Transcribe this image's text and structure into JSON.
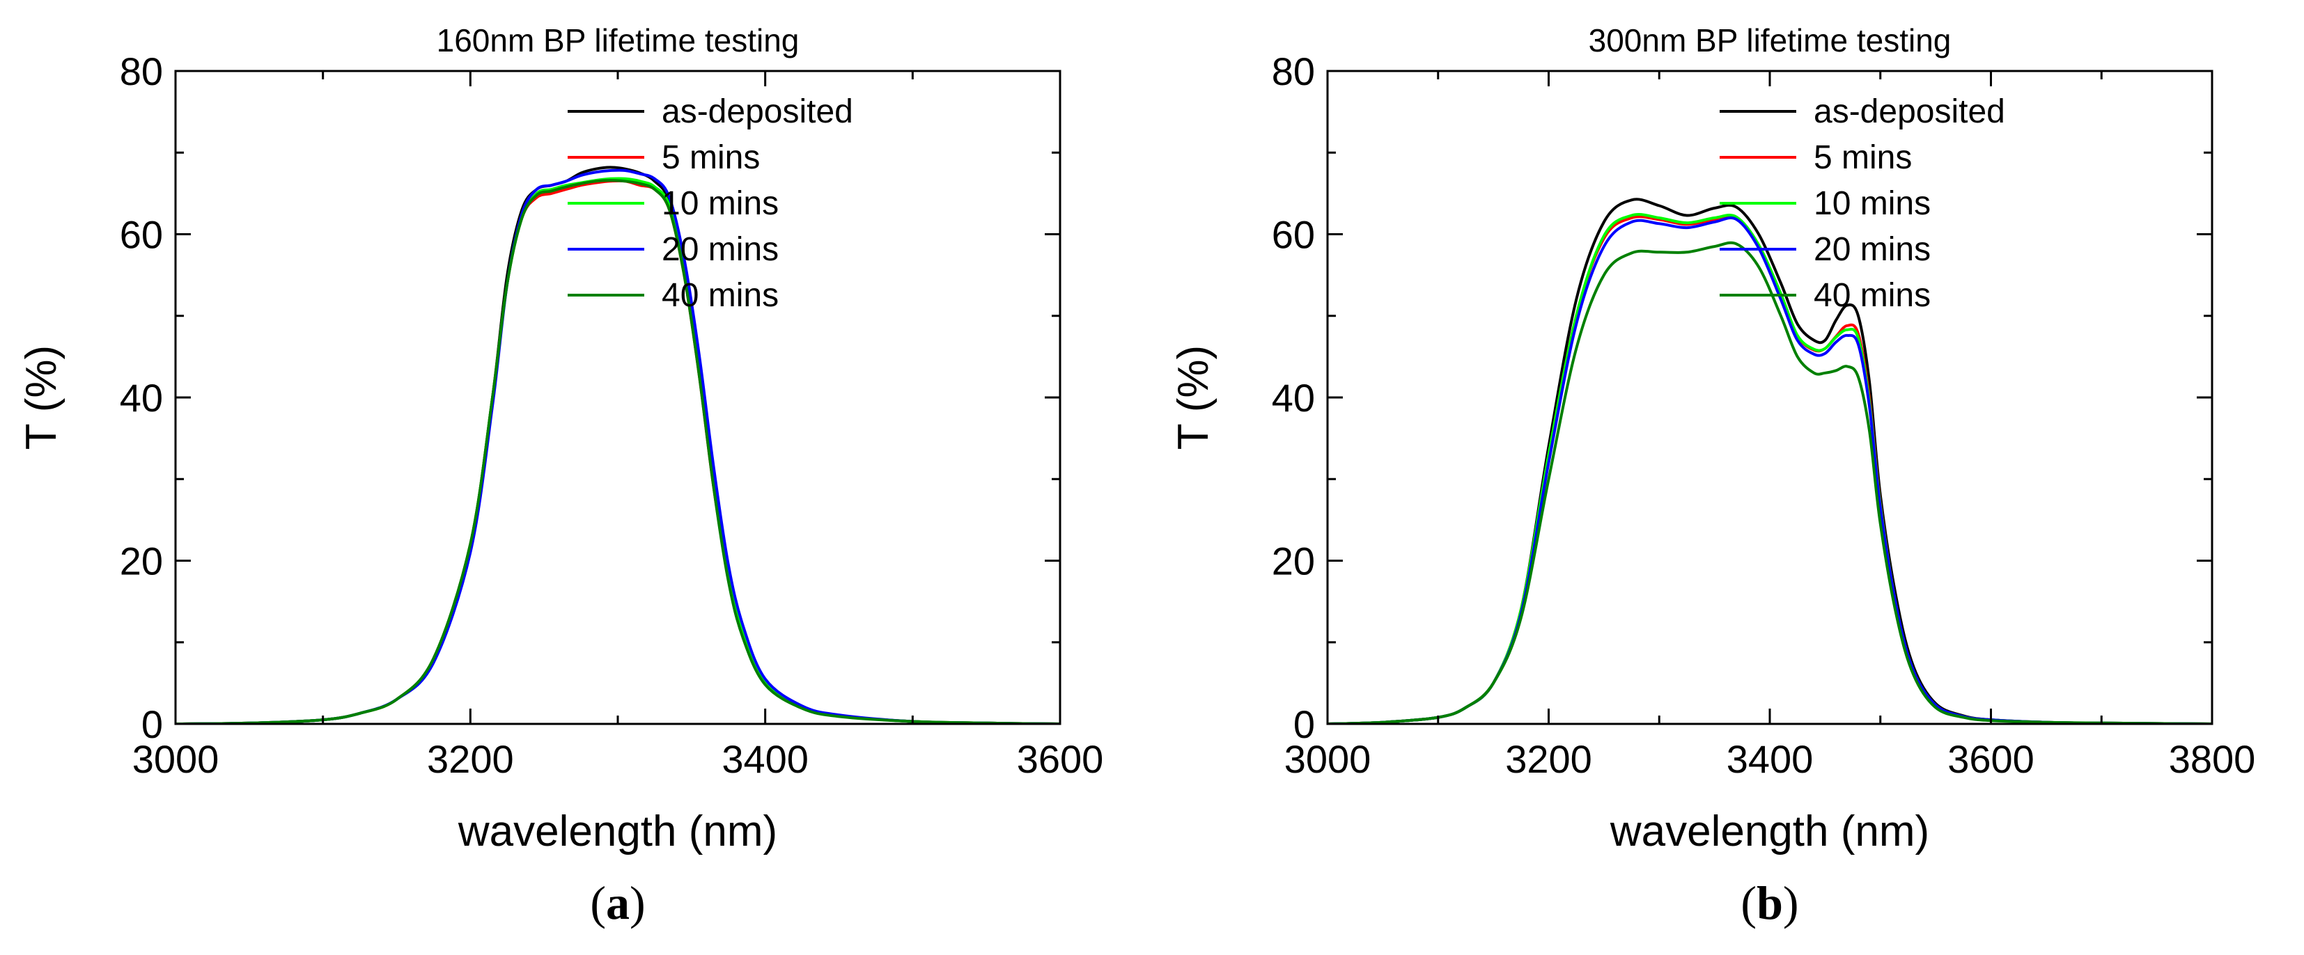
{
  "chart_data": [
    {
      "type": "line",
      "panel_label": "(a)",
      "panel_letter": "a",
      "title": "160nm BP lifetime testing",
      "xlabel": "wavelength (nm)",
      "ylabel": "T (%)",
      "xlim": [
        3000,
        3600
      ],
      "ylim": [
        0,
        80
      ],
      "xticks": [
        3000,
        3200,
        3400,
        3600
      ],
      "yticks": [
        0,
        20,
        40,
        60,
        80
      ],
      "x_minor_step": 100,
      "y_minor_step": 10,
      "grid": false,
      "legend_position": "top-right",
      "series": [
        {
          "name": "as-deposited",
          "color": "#000000",
          "x": [
            3000,
            3050,
            3100,
            3125,
            3150,
            3175,
            3200,
            3215,
            3225,
            3235,
            3245,
            3255,
            3265,
            3275,
            3285,
            3295,
            3305,
            3315,
            3325,
            3335,
            3345,
            3355,
            3365,
            3375,
            3385,
            3400,
            3425,
            3450,
            3500,
            3550,
            3600
          ],
          "y": [
            0,
            0.1,
            0.5,
            1.3,
            3,
            8,
            22,
            40,
            55,
            63,
            65.5,
            66,
            66.5,
            67.5,
            68,
            68.2,
            68,
            67.5,
            66.5,
            64,
            56,
            44,
            30,
            18,
            11,
            5,
            2,
            1,
            0.3,
            0.1,
            0
          ]
        },
        {
          "name": "5 mins",
          "color": "#ff0000",
          "x": [
            3000,
            3050,
            3100,
            3125,
            3150,
            3175,
            3200,
            3215,
            3225,
            3235,
            3245,
            3255,
            3265,
            3275,
            3285,
            3295,
            3305,
            3315,
            3325,
            3335,
            3345,
            3355,
            3365,
            3375,
            3385,
            3400,
            3425,
            3450,
            3500,
            3550,
            3600
          ],
          "y": [
            0,
            0.1,
            0.5,
            1.3,
            3,
            8,
            22,
            40,
            54,
            62,
            64.5,
            65,
            65.5,
            66,
            66.3,
            66.5,
            66.5,
            66,
            65.5,
            63,
            55,
            43,
            29,
            18,
            11,
            5,
            2,
            1,
            0.3,
            0.1,
            0
          ]
        },
        {
          "name": "10 mins",
          "color": "#00ff00",
          "x": [
            3000,
            3050,
            3100,
            3125,
            3150,
            3175,
            3200,
            3215,
            3225,
            3235,
            3245,
            3255,
            3265,
            3275,
            3285,
            3295,
            3305,
            3315,
            3325,
            3335,
            3345,
            3355,
            3365,
            3375,
            3385,
            3400,
            3425,
            3450,
            3500,
            3550,
            3600
          ],
          "y": [
            0,
            0.1,
            0.5,
            1.3,
            3,
            8,
            22,
            40,
            54,
            62,
            65,
            65.5,
            66,
            66.3,
            66.6,
            66.8,
            66.8,
            66.5,
            65.8,
            63.5,
            55.5,
            43.5,
            29.5,
            18,
            11,
            5,
            2,
            1,
            0.3,
            0.1,
            0
          ]
        },
        {
          "name": "20 mins",
          "color": "#0000ff",
          "x": [
            3000,
            3050,
            3100,
            3125,
            3150,
            3175,
            3200,
            3215,
            3225,
            3235,
            3245,
            3255,
            3265,
            3275,
            3285,
            3295,
            3305,
            3315,
            3325,
            3335,
            3345,
            3355,
            3365,
            3375,
            3385,
            3400,
            3425,
            3450,
            3500,
            3550,
            3600
          ],
          "y": [
            0,
            0.1,
            0.5,
            1.3,
            3,
            7.5,
            21,
            39,
            54,
            62.5,
            65.5,
            66,
            66.5,
            67.2,
            67.6,
            67.8,
            67.8,
            67.4,
            66.8,
            64.5,
            57,
            45.5,
            31.5,
            19.5,
            12,
            5.5,
            2.2,
            1.1,
            0.3,
            0.1,
            0
          ]
        },
        {
          "name": "40 mins",
          "color": "#008000",
          "x": [
            3000,
            3050,
            3100,
            3125,
            3150,
            3175,
            3200,
            3215,
            3225,
            3235,
            3245,
            3255,
            3265,
            3275,
            3285,
            3295,
            3305,
            3315,
            3325,
            3335,
            3345,
            3355,
            3365,
            3375,
            3385,
            3400,
            3425,
            3450,
            3500,
            3550,
            3600
          ],
          "y": [
            0,
            0.1,
            0.5,
            1.3,
            3,
            8,
            22,
            40,
            54,
            62,
            64.8,
            65.3,
            65.8,
            66.2,
            66.5,
            66.6,
            66.5,
            66.2,
            65.5,
            63,
            55,
            43,
            29,
            17.5,
            10.5,
            4.8,
            1.9,
            0.9,
            0.3,
            0.1,
            0
          ]
        }
      ]
    },
    {
      "type": "line",
      "panel_label": "(b)",
      "panel_letter": "b",
      "title": "300nm BP lifetime testing",
      "xlabel": "wavelength (nm)",
      "ylabel": "T (%)",
      "xlim": [
        3000,
        3800
      ],
      "ylim": [
        0,
        80
      ],
      "xticks": [
        3000,
        3200,
        3400,
        3600,
        3800
      ],
      "yticks": [
        0,
        20,
        40,
        60,
        80
      ],
      "x_minor_step": 100,
      "y_minor_step": 10,
      "grid": false,
      "legend_position": "top-right",
      "series": [
        {
          "name": "as-deposited",
          "color": "#000000",
          "x": [
            3000,
            3050,
            3100,
            3125,
            3150,
            3175,
            3200,
            3225,
            3250,
            3275,
            3300,
            3325,
            3350,
            3370,
            3390,
            3410,
            3425,
            3440,
            3450,
            3460,
            3470,
            3480,
            3490,
            3500,
            3515,
            3530,
            3550,
            3575,
            3600,
            3650,
            3700,
            3800
          ],
          "y": [
            0,
            0.2,
            0.8,
            2,
            5,
            14,
            34,
            52,
            61.5,
            64.2,
            63.5,
            62.3,
            63.2,
            63.3,
            60,
            54,
            49,
            47,
            47,
            49.5,
            51.3,
            50,
            42,
            28,
            15,
            7,
            2.5,
            1,
            0.5,
            0.2,
            0.1,
            0
          ]
        },
        {
          "name": "5 mins",
          "color": "#ff0000",
          "x": [
            3000,
            3050,
            3100,
            3125,
            3150,
            3175,
            3200,
            3225,
            3250,
            3275,
            3300,
            3325,
            3350,
            3370,
            3390,
            3410,
            3425,
            3440,
            3450,
            3460,
            3470,
            3480,
            3490,
            3500,
            3515,
            3530,
            3550,
            3575,
            3600,
            3650,
            3700,
            3800
          ],
          "y": [
            0,
            0.2,
            0.8,
            2,
            5,
            14,
            33,
            50,
            59.5,
            62,
            61.8,
            61.2,
            61.8,
            62,
            58.5,
            52.5,
            47.5,
            45.8,
            46,
            47.5,
            48.8,
            47.8,
            40,
            27,
            14,
            6.5,
            2.3,
            0.9,
            0.5,
            0.2,
            0.1,
            0
          ]
        },
        {
          "name": "10 mins",
          "color": "#00ff00",
          "x": [
            3000,
            3050,
            3100,
            3125,
            3150,
            3175,
            3200,
            3225,
            3250,
            3275,
            3300,
            3325,
            3350,
            3370,
            3390,
            3410,
            3425,
            3440,
            3450,
            3460,
            3470,
            3480,
            3490,
            3500,
            3515,
            3530,
            3550,
            3575,
            3600,
            3650,
            3700,
            3800
          ],
          "y": [
            0,
            0.2,
            0.8,
            2,
            5,
            14,
            33,
            50,
            59.8,
            62.3,
            62,
            61.4,
            62,
            62.1,
            58.7,
            52.7,
            47.6,
            45.9,
            46,
            47.4,
            48.3,
            47.3,
            39.5,
            26.8,
            14,
            6.5,
            2.3,
            0.9,
            0.5,
            0.2,
            0.1,
            0
          ]
        },
        {
          "name": "20 mins",
          "color": "#0000ff",
          "x": [
            3000,
            3050,
            3100,
            3125,
            3150,
            3175,
            3200,
            3225,
            3250,
            3275,
            3300,
            3325,
            3350,
            3370,
            3390,
            3410,
            3425,
            3440,
            3450,
            3460,
            3470,
            3480,
            3490,
            3500,
            3515,
            3530,
            3550,
            3575,
            3600,
            3650,
            3700,
            3800
          ],
          "y": [
            0,
            0.2,
            0.8,
            2,
            5,
            13.5,
            32,
            49,
            58.5,
            61.5,
            61.3,
            60.8,
            61.5,
            61.8,
            58.3,
            52,
            47,
            45.3,
            45.4,
            46.8,
            47.6,
            46.5,
            39,
            26.5,
            14,
            6.5,
            2.3,
            0.9,
            0.5,
            0.2,
            0.1,
            0
          ]
        },
        {
          "name": "40 mins",
          "color": "#008000",
          "x": [
            3000,
            3050,
            3100,
            3125,
            3150,
            3175,
            3200,
            3225,
            3250,
            3275,
            3300,
            3325,
            3350,
            3370,
            3390,
            3410,
            3425,
            3440,
            3450,
            3460,
            3470,
            3480,
            3490,
            3500,
            3515,
            3530,
            3550,
            3575,
            3600,
            3650,
            3700,
            3800
          ],
          "y": [
            0,
            0.2,
            0.8,
            2,
            5,
            13,
            30,
            46,
            55,
            57.7,
            57.8,
            57.8,
            58.5,
            58.8,
            56,
            50,
            45,
            43,
            43,
            43.3,
            43.8,
            42.5,
            36,
            24.5,
            13,
            6,
            2,
            0.8,
            0.4,
            0.2,
            0.1,
            0
          ]
        }
      ]
    }
  ]
}
